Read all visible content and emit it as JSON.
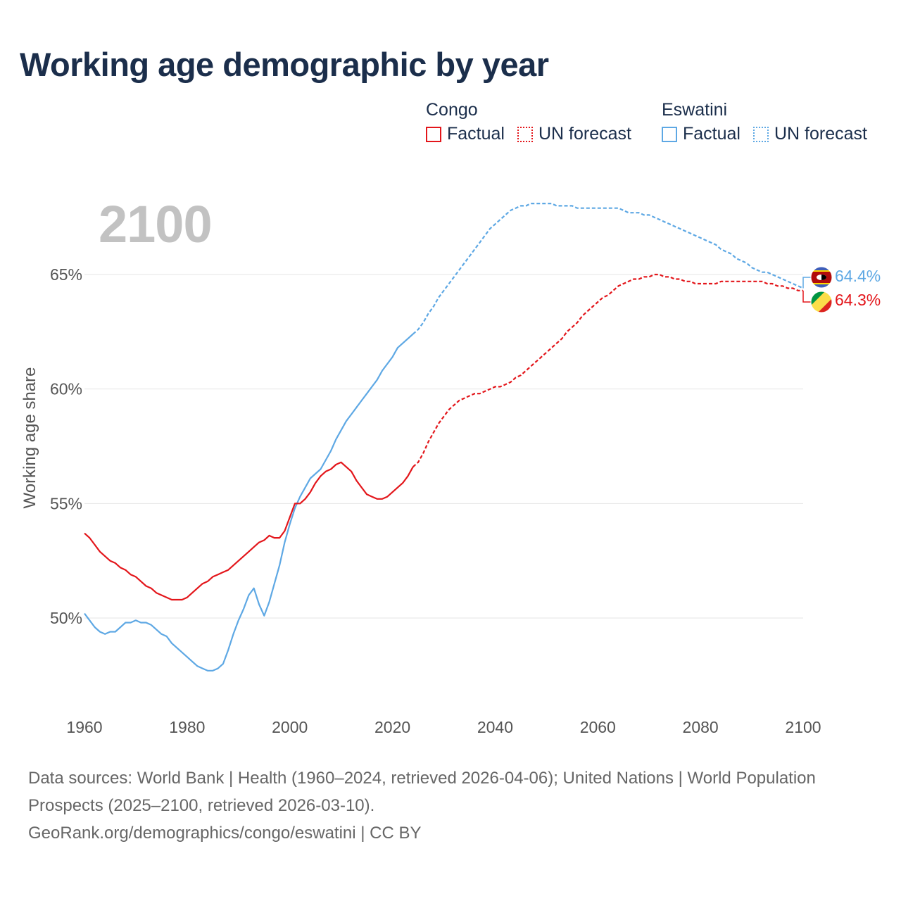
{
  "title": "Working age demographic by year",
  "year": "2100",
  "legend": {
    "groups": [
      {
        "name": "Congo",
        "color": "#e3161b",
        "factual": "Factual",
        "forecast": "UN forecast"
      },
      {
        "name": "Eswatini",
        "color": "#5ea8e4",
        "factual": "Factual",
        "forecast": "UN forecast"
      }
    ]
  },
  "footer": {
    "line1": "Data sources: World Bank | Health (1960–2024, retrieved 2026-04-06); United Nations | World Population Prospects (2025–2100, retrieved 2026-03-10).",
    "line2": "GeoRank.org/demographics/congo/eswatini | CC BY"
  },
  "chart_data": {
    "type": "line",
    "title": "Working age demographic by year",
    "xlabel": "",
    "ylabel": "Working age share",
    "xlim": [
      1960,
      2100
    ],
    "ylim": [
      46.5,
      69
    ],
    "x_ticks": [
      1960,
      1980,
      2000,
      2020,
      2040,
      2060,
      2080,
      2100
    ],
    "y_ticks": [
      50,
      55,
      60,
      65
    ],
    "y_tick_labels": [
      "50%",
      "55%",
      "60%",
      "65%"
    ],
    "series": [
      {
        "name": "Congo",
        "color": "#e3161b",
        "end_label": "64.3%",
        "factual": [
          [
            1960,
            53.7
          ],
          [
            1961,
            53.5
          ],
          [
            1962,
            53.2
          ],
          [
            1963,
            52.9
          ],
          [
            1964,
            52.7
          ],
          [
            1965,
            52.5
          ],
          [
            1966,
            52.4
          ],
          [
            1967,
            52.2
          ],
          [
            1968,
            52.1
          ],
          [
            1969,
            51.9
          ],
          [
            1970,
            51.8
          ],
          [
            1971,
            51.6
          ],
          [
            1972,
            51.4
          ],
          [
            1973,
            51.3
          ],
          [
            1974,
            51.1
          ],
          [
            1975,
            51.0
          ],
          [
            1976,
            50.9
          ],
          [
            1977,
            50.8
          ],
          [
            1978,
            50.8
          ],
          [
            1979,
            50.8
          ],
          [
            1980,
            50.9
          ],
          [
            1981,
            51.1
          ],
          [
            1982,
            51.3
          ],
          [
            1983,
            51.5
          ],
          [
            1984,
            51.6
          ],
          [
            1985,
            51.8
          ],
          [
            1986,
            51.9
          ],
          [
            1987,
            52.0
          ],
          [
            1988,
            52.1
          ],
          [
            1989,
            52.3
          ],
          [
            1990,
            52.5
          ],
          [
            1991,
            52.7
          ],
          [
            1992,
            52.9
          ],
          [
            1993,
            53.1
          ],
          [
            1994,
            53.3
          ],
          [
            1995,
            53.4
          ],
          [
            1996,
            53.6
          ],
          [
            1997,
            53.5
          ],
          [
            1998,
            53.5
          ],
          [
            1999,
            53.8
          ],
          [
            2000,
            54.4
          ],
          [
            2001,
            55.0
          ],
          [
            2002,
            55.0
          ],
          [
            2003,
            55.2
          ],
          [
            2004,
            55.5
          ],
          [
            2005,
            55.9
          ],
          [
            2006,
            56.2
          ],
          [
            2007,
            56.4
          ],
          [
            2008,
            56.5
          ],
          [
            2009,
            56.7
          ],
          [
            2010,
            56.8
          ],
          [
            2011,
            56.6
          ],
          [
            2012,
            56.4
          ],
          [
            2013,
            56.0
          ],
          [
            2014,
            55.7
          ],
          [
            2015,
            55.4
          ],
          [
            2016,
            55.3
          ],
          [
            2017,
            55.2
          ],
          [
            2018,
            55.2
          ],
          [
            2019,
            55.3
          ],
          [
            2020,
            55.5
          ],
          [
            2021,
            55.7
          ],
          [
            2022,
            55.9
          ],
          [
            2023,
            56.2
          ],
          [
            2024,
            56.6
          ]
        ],
        "forecast": [
          [
            2024,
            56.6
          ],
          [
            2025,
            56.8
          ],
          [
            2026,
            57.2
          ],
          [
            2027,
            57.7
          ],
          [
            2028,
            58.1
          ],
          [
            2029,
            58.5
          ],
          [
            2030,
            58.8
          ],
          [
            2031,
            59.1
          ],
          [
            2032,
            59.3
          ],
          [
            2033,
            59.5
          ],
          [
            2034,
            59.6
          ],
          [
            2035,
            59.7
          ],
          [
            2036,
            59.8
          ],
          [
            2037,
            59.8
          ],
          [
            2038,
            59.9
          ],
          [
            2039,
            60.0
          ],
          [
            2040,
            60.1
          ],
          [
            2041,
            60.1
          ],
          [
            2042,
            60.2
          ],
          [
            2043,
            60.3
          ],
          [
            2044,
            60.5
          ],
          [
            2045,
            60.6
          ],
          [
            2046,
            60.8
          ],
          [
            2047,
            61.0
          ],
          [
            2048,
            61.2
          ],
          [
            2049,
            61.4
          ],
          [
            2050,
            61.6
          ],
          [
            2051,
            61.8
          ],
          [
            2052,
            62.0
          ],
          [
            2053,
            62.2
          ],
          [
            2054,
            62.5
          ],
          [
            2055,
            62.7
          ],
          [
            2056,
            62.9
          ],
          [
            2057,
            63.2
          ],
          [
            2058,
            63.4
          ],
          [
            2059,
            63.6
          ],
          [
            2060,
            63.8
          ],
          [
            2061,
            64.0
          ],
          [
            2062,
            64.1
          ],
          [
            2063,
            64.3
          ],
          [
            2064,
            64.5
          ],
          [
            2065,
            64.6
          ],
          [
            2066,
            64.7
          ],
          [
            2067,
            64.8
          ],
          [
            2068,
            64.8
          ],
          [
            2069,
            64.9
          ],
          [
            2070,
            64.9
          ],
          [
            2071,
            65.0
          ],
          [
            2072,
            65.0
          ],
          [
            2073,
            64.9
          ],
          [
            2074,
            64.9
          ],
          [
            2075,
            64.8
          ],
          [
            2076,
            64.8
          ],
          [
            2077,
            64.7
          ],
          [
            2078,
            64.7
          ],
          [
            2079,
            64.6
          ],
          [
            2080,
            64.6
          ],
          [
            2081,
            64.6
          ],
          [
            2082,
            64.6
          ],
          [
            2083,
            64.6
          ],
          [
            2084,
            64.7
          ],
          [
            2085,
            64.7
          ],
          [
            2086,
            64.7
          ],
          [
            2087,
            64.7
          ],
          [
            2088,
            64.7
          ],
          [
            2089,
            64.7
          ],
          [
            2090,
            64.7
          ],
          [
            2091,
            64.7
          ],
          [
            2092,
            64.7
          ],
          [
            2093,
            64.6
          ],
          [
            2094,
            64.6
          ],
          [
            2095,
            64.5
          ],
          [
            2096,
            64.5
          ],
          [
            2097,
            64.4
          ],
          [
            2098,
            64.4
          ],
          [
            2099,
            64.3
          ],
          [
            2100,
            64.3
          ]
        ]
      },
      {
        "name": "Eswatini",
        "color": "#5ea8e4",
        "end_label": "64.4%",
        "factual": [
          [
            1960,
            50.2
          ],
          [
            1961,
            49.9
          ],
          [
            1962,
            49.6
          ],
          [
            1963,
            49.4
          ],
          [
            1964,
            49.3
          ],
          [
            1965,
            49.4
          ],
          [
            1966,
            49.4
          ],
          [
            1967,
            49.6
          ],
          [
            1968,
            49.8
          ],
          [
            1969,
            49.8
          ],
          [
            1970,
            49.9
          ],
          [
            1971,
            49.8
          ],
          [
            1972,
            49.8
          ],
          [
            1973,
            49.7
          ],
          [
            1974,
            49.5
          ],
          [
            1975,
            49.3
          ],
          [
            1976,
            49.2
          ],
          [
            1977,
            48.9
          ],
          [
            1978,
            48.7
          ],
          [
            1979,
            48.5
          ],
          [
            1980,
            48.3
          ],
          [
            1981,
            48.1
          ],
          [
            1982,
            47.9
          ],
          [
            1983,
            47.8
          ],
          [
            1984,
            47.7
          ],
          [
            1985,
            47.7
          ],
          [
            1986,
            47.8
          ],
          [
            1987,
            48.0
          ],
          [
            1988,
            48.6
          ],
          [
            1989,
            49.3
          ],
          [
            1990,
            49.9
          ],
          [
            1991,
            50.4
          ],
          [
            1992,
            51.0
          ],
          [
            1993,
            51.3
          ],
          [
            1994,
            50.6
          ],
          [
            1995,
            50.1
          ],
          [
            1996,
            50.7
          ],
          [
            1997,
            51.5
          ],
          [
            1998,
            52.3
          ],
          [
            1999,
            53.3
          ],
          [
            2000,
            54.1
          ],
          [
            2001,
            54.8
          ],
          [
            2002,
            55.3
          ],
          [
            2003,
            55.7
          ],
          [
            2004,
            56.1
          ],
          [
            2005,
            56.3
          ],
          [
            2006,
            56.5
          ],
          [
            2007,
            56.9
          ],
          [
            2008,
            57.3
          ],
          [
            2009,
            57.8
          ],
          [
            2010,
            58.2
          ],
          [
            2011,
            58.6
          ],
          [
            2012,
            58.9
          ],
          [
            2013,
            59.2
          ],
          [
            2014,
            59.5
          ],
          [
            2015,
            59.8
          ],
          [
            2016,
            60.1
          ],
          [
            2017,
            60.4
          ],
          [
            2018,
            60.8
          ],
          [
            2019,
            61.1
          ],
          [
            2020,
            61.4
          ],
          [
            2021,
            61.8
          ],
          [
            2022,
            62.0
          ],
          [
            2023,
            62.2
          ],
          [
            2024,
            62.4
          ]
        ],
        "forecast": [
          [
            2024,
            62.4
          ],
          [
            2025,
            62.6
          ],
          [
            2026,
            62.9
          ],
          [
            2027,
            63.3
          ],
          [
            2028,
            63.6
          ],
          [
            2029,
            64.0
          ],
          [
            2030,
            64.3
          ],
          [
            2031,
            64.6
          ],
          [
            2032,
            64.9
          ],
          [
            2033,
            65.2
          ],
          [
            2034,
            65.5
          ],
          [
            2035,
            65.8
          ],
          [
            2036,
            66.1
          ],
          [
            2037,
            66.4
          ],
          [
            2038,
            66.7
          ],
          [
            2039,
            67.0
          ],
          [
            2040,
            67.2
          ],
          [
            2041,
            67.4
          ],
          [
            2042,
            67.6
          ],
          [
            2043,
            67.8
          ],
          [
            2044,
            67.9
          ],
          [
            2045,
            68.0
          ],
          [
            2046,
            68.0
          ],
          [
            2047,
            68.1
          ],
          [
            2048,
            68.1
          ],
          [
            2049,
            68.1
          ],
          [
            2050,
            68.1
          ],
          [
            2051,
            68.1
          ],
          [
            2052,
            68.0
          ],
          [
            2053,
            68.0
          ],
          [
            2054,
            68.0
          ],
          [
            2055,
            68.0
          ],
          [
            2056,
            67.9
          ],
          [
            2057,
            67.9
          ],
          [
            2058,
            67.9
          ],
          [
            2059,
            67.9
          ],
          [
            2060,
            67.9
          ],
          [
            2061,
            67.9
          ],
          [
            2062,
            67.9
          ],
          [
            2063,
            67.9
          ],
          [
            2064,
            67.9
          ],
          [
            2065,
            67.8
          ],
          [
            2066,
            67.7
          ],
          [
            2067,
            67.7
          ],
          [
            2068,
            67.7
          ],
          [
            2069,
            67.6
          ],
          [
            2070,
            67.6
          ],
          [
            2071,
            67.5
          ],
          [
            2072,
            67.4
          ],
          [
            2073,
            67.3
          ],
          [
            2074,
            67.2
          ],
          [
            2075,
            67.1
          ],
          [
            2076,
            67.0
          ],
          [
            2077,
            66.9
          ],
          [
            2078,
            66.8
          ],
          [
            2079,
            66.7
          ],
          [
            2080,
            66.6
          ],
          [
            2081,
            66.5
          ],
          [
            2082,
            66.4
          ],
          [
            2083,
            66.3
          ],
          [
            2084,
            66.1
          ],
          [
            2085,
            66.0
          ],
          [
            2086,
            65.9
          ],
          [
            2087,
            65.7
          ],
          [
            2088,
            65.6
          ],
          [
            2089,
            65.5
          ],
          [
            2090,
            65.3
          ],
          [
            2091,
            65.2
          ],
          [
            2092,
            65.1
          ],
          [
            2093,
            65.1
          ],
          [
            2094,
            65.0
          ],
          [
            2095,
            64.9
          ],
          [
            2096,
            64.8
          ],
          [
            2097,
            64.7
          ],
          [
            2098,
            64.6
          ],
          [
            2099,
            64.5
          ],
          [
            2100,
            64.4
          ]
        ]
      }
    ]
  }
}
